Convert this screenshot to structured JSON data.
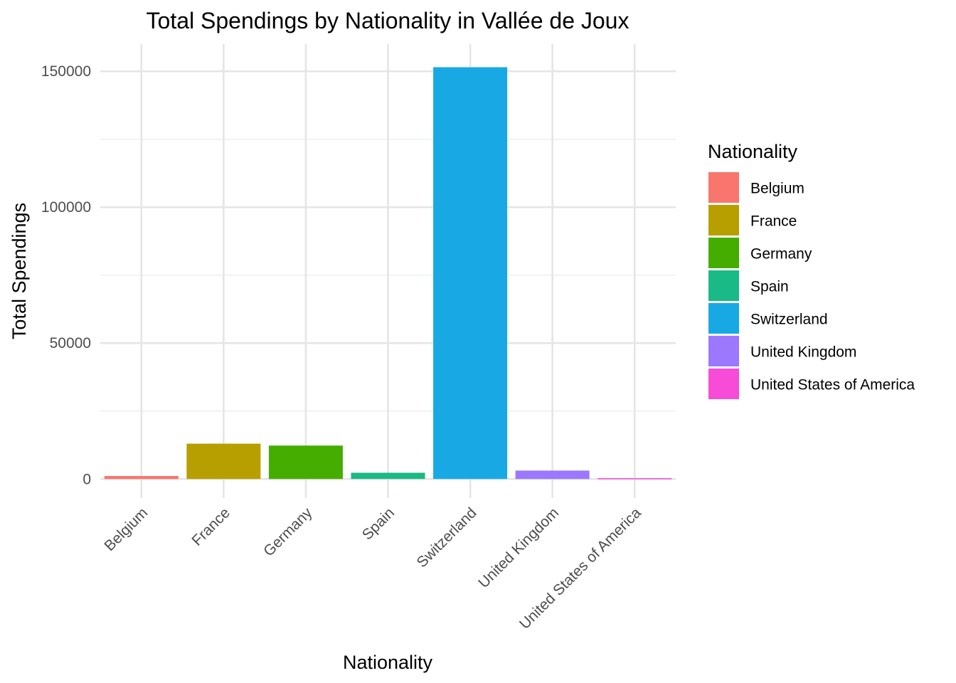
{
  "chart_data": {
    "type": "bar",
    "title": "Total Spendings by Nationality in Vallée de Joux",
    "xlabel": "Nationality",
    "ylabel": "Total Spendings",
    "categories": [
      "Belgium",
      "France",
      "Germany",
      "Spain",
      "Switzerland",
      "United Kingdom",
      "United States of America"
    ],
    "values": [
      1100,
      13000,
      12300,
      2300,
      151500,
      3100,
      300
    ],
    "colors": [
      "#F8766D",
      "#B79F00",
      "#45AD00",
      "#1ABA86",
      "#18A9E4",
      "#9B78FF",
      "#F74BD8"
    ],
    "ylim": [
      -7000,
      160000
    ],
    "yticks": [
      0,
      50000,
      100000,
      150000
    ],
    "ytick_labels": [
      "0",
      "50000",
      "100000",
      "150000"
    ],
    "grid": true,
    "legend": {
      "title": "Nationality",
      "position": "right",
      "entries": [
        "Belgium",
        "France",
        "Germany",
        "Spain",
        "Switzerland",
        "United Kingdom",
        "United States of America"
      ]
    }
  }
}
